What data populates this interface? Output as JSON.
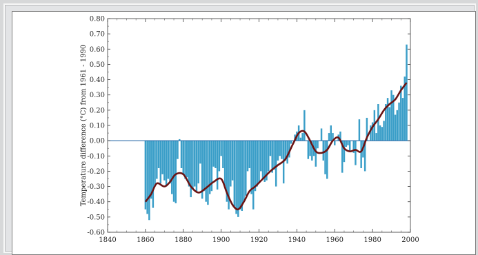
{
  "chart_data": {
    "type": "bar",
    "title": "",
    "xlabel": "",
    "ylabel": "Temperature difference (°C) from 1961 - 1990",
    "xlim": [
      1840,
      2000
    ],
    "ylim": [
      -0.6,
      0.8
    ],
    "xticks": [
      1840,
      1860,
      1880,
      1900,
      1920,
      1940,
      1960,
      1980,
      2000
    ],
    "yticks": [
      "-0.60",
      "-0.50",
      "-0.40",
      "-0.30",
      "-0.20",
      "-0.10",
      "0.00",
      "0.10",
      "0.20",
      "0.30",
      "0.40",
      "0.50",
      "0.60",
      "0.70",
      "0.80"
    ],
    "colors": {
      "bars": "#3a9ec8",
      "smoothed": "#6b1414",
      "zero_line": "#1a5fa0"
    },
    "series": [
      {
        "kind": "annual_anomaly_bars",
        "x": [
          1860,
          1861,
          1862,
          1863,
          1864,
          1865,
          1866,
          1867,
          1868,
          1869,
          1870,
          1871,
          1872,
          1873,
          1874,
          1875,
          1876,
          1877,
          1878,
          1879,
          1880,
          1881,
          1882,
          1883,
          1884,
          1885,
          1886,
          1887,
          1888,
          1889,
          1890,
          1891,
          1892,
          1893,
          1894,
          1895,
          1896,
          1897,
          1898,
          1899,
          1900,
          1901,
          1902,
          1903,
          1904,
          1905,
          1906,
          1907,
          1908,
          1909,
          1910,
          1911,
          1912,
          1913,
          1914,
          1915,
          1916,
          1917,
          1918,
          1919,
          1920,
          1921,
          1922,
          1923,
          1924,
          1925,
          1926,
          1927,
          1928,
          1929,
          1930,
          1931,
          1932,
          1933,
          1934,
          1935,
          1936,
          1937,
          1938,
          1939,
          1940,
          1941,
          1942,
          1943,
          1944,
          1945,
          1946,
          1947,
          1948,
          1949,
          1950,
          1951,
          1952,
          1953,
          1954,
          1955,
          1956,
          1957,
          1958,
          1959,
          1960,
          1961,
          1962,
          1963,
          1964,
          1965,
          1966,
          1967,
          1968,
          1969,
          1970,
          1971,
          1972,
          1973,
          1974,
          1975,
          1976,
          1977,
          1978,
          1979,
          1980,
          1981,
          1982,
          1983,
          1984,
          1985,
          1986,
          1987,
          1988,
          1989,
          1990,
          1991,
          1992,
          1993,
          1994,
          1995,
          1996,
          1997,
          1998
        ],
        "y": [
          -0.45,
          -0.48,
          -0.52,
          -0.38,
          -0.44,
          -0.3,
          -0.25,
          -0.18,
          -0.28,
          -0.22,
          -0.26,
          -0.3,
          -0.25,
          -0.28,
          -0.35,
          -0.4,
          -0.41,
          -0.12,
          0.01,
          -0.18,
          -0.22,
          -0.25,
          -0.24,
          -0.3,
          -0.37,
          -0.32,
          -0.3,
          -0.33,
          -0.28,
          -0.15,
          -0.38,
          -0.33,
          -0.4,
          -0.42,
          -0.35,
          -0.33,
          -0.17,
          -0.18,
          -0.32,
          -0.2,
          -0.1,
          -0.18,
          -0.3,
          -0.4,
          -0.45,
          -0.3,
          -0.26,
          -0.43,
          -0.48,
          -0.5,
          -0.45,
          -0.46,
          -0.4,
          -0.36,
          -0.2,
          -0.18,
          -0.35,
          -0.45,
          -0.33,
          -0.3,
          -0.28,
          -0.2,
          -0.25,
          -0.27,
          -0.26,
          -0.2,
          -0.1,
          -0.21,
          -0.19,
          -0.3,
          -0.13,
          -0.1,
          -0.12,
          -0.28,
          -0.13,
          -0.15,
          -0.11,
          -0.02,
          0.0,
          0.04,
          0.06,
          0.1,
          0.02,
          0.05,
          0.2,
          0.0,
          -0.12,
          -0.1,
          -0.13,
          -0.1,
          -0.17,
          -0.05,
          0.0,
          0.08,
          -0.13,
          -0.22,
          -0.25,
          0.05,
          0.1,
          0.05,
          -0.03,
          0.0,
          0.04,
          0.06,
          -0.21,
          -0.14,
          -0.04,
          -0.03,
          -0.07,
          0.0,
          -0.08,
          -0.16,
          0.0,
          0.14,
          -0.18,
          -0.11,
          -0.2,
          0.15,
          0.0,
          0.1,
          0.12,
          0.2,
          0.05,
          0.24,
          0.1,
          0.09,
          0.13,
          0.24,
          0.28,
          0.22,
          0.33,
          0.3,
          0.17,
          0.2,
          0.25,
          0.36,
          0.28,
          0.42,
          0.63
        ]
      },
      {
        "kind": "smoothed_curve",
        "x": [
          1860,
          1863,
          1866,
          1870,
          1873,
          1876,
          1880,
          1884,
          1888,
          1892,
          1896,
          1900,
          1903,
          1906,
          1909,
          1912,
          1915,
          1918,
          1922,
          1926,
          1930,
          1934,
          1938,
          1941,
          1944,
          1947,
          1950,
          1953,
          1956,
          1959,
          1962,
          1965,
          1968,
          1971,
          1974,
          1977,
          1980,
          1983,
          1986,
          1989,
          1992,
          1995,
          1998
        ],
        "y": [
          -0.4,
          -0.35,
          -0.28,
          -0.3,
          -0.27,
          -0.22,
          -0.22,
          -0.3,
          -0.34,
          -0.31,
          -0.27,
          -0.25,
          -0.34,
          -0.42,
          -0.45,
          -0.4,
          -0.33,
          -0.3,
          -0.25,
          -0.2,
          -0.16,
          -0.12,
          -0.02,
          0.05,
          0.06,
          0.0,
          -0.07,
          -0.08,
          -0.06,
          0.0,
          0.02,
          -0.05,
          -0.07,
          -0.06,
          -0.07,
          0.02,
          0.09,
          0.14,
          0.2,
          0.24,
          0.27,
          0.33,
          0.38
        ]
      }
    ]
  }
}
